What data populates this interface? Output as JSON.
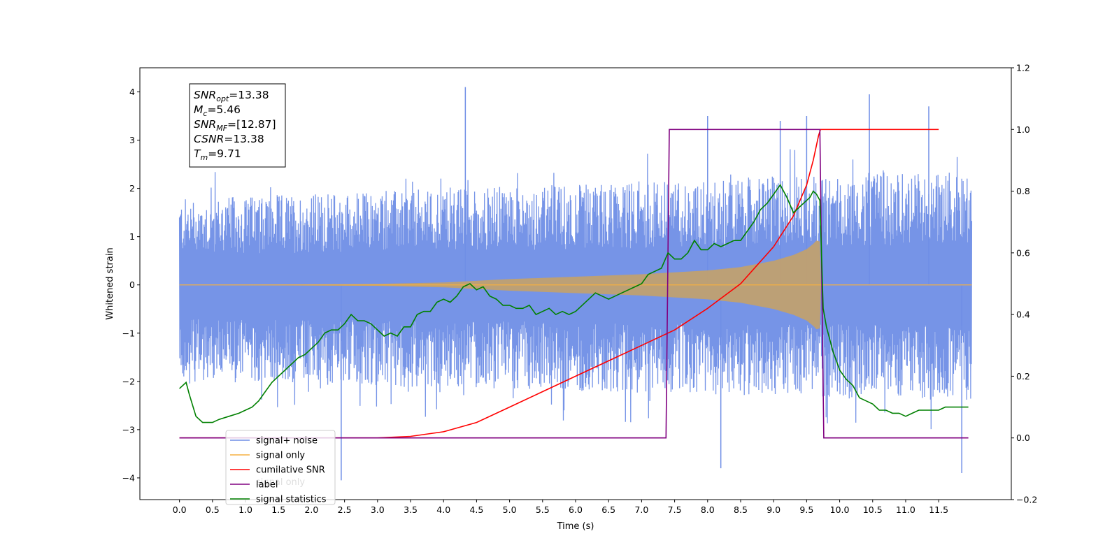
{
  "chart_data": {
    "type": "line",
    "xlabel": "Time (s)",
    "ylabel_left": "Whitened strain",
    "ylabel_right": "",
    "xlim": [
      -0.6,
      12.6
    ],
    "ylim_left": [
      -4.45,
      4.5
    ],
    "ylim_right": [
      -0.2,
      1.2
    ],
    "grid": false,
    "x_ticks": [
      0.0,
      0.5,
      1.0,
      1.5,
      2.0,
      2.5,
      3.0,
      3.5,
      4.0,
      4.5,
      5.0,
      5.5,
      6.0,
      6.5,
      7.0,
      7.5,
      8.0,
      8.5,
      9.0,
      9.5,
      10.0,
      10.5,
      11.0,
      11.5
    ],
    "x_tick_labels": [
      "0.0",
      "0.5",
      "1.0",
      "1.5",
      "2.0",
      "2.5",
      "3.0",
      "3.5",
      "4.0",
      "4.5",
      "5.0",
      "5.5",
      "6.0",
      "6.5",
      "7.0",
      "7.5",
      "8.0",
      "8.5",
      "9.0",
      "9.5",
      "10.0",
      "10.5",
      "11.0",
      "11.5"
    ],
    "y_left_ticks": [
      4,
      3,
      2,
      1,
      0,
      -1,
      -2,
      -3,
      -4
    ],
    "y_left_tick_labels": [
      "4",
      "3",
      "2",
      "1",
      "0",
      "−1",
      "−2",
      "−3",
      "−4"
    ],
    "y_right_ticks": [
      1.2,
      1.0,
      0.8,
      0.6,
      0.4,
      0.2,
      0.0,
      -0.2
    ],
    "y_right_tick_labels": [
      "1.2",
      "1.0",
      "0.8",
      "0.6",
      "0.4",
      "0.2",
      "0.0",
      "−0.2"
    ],
    "legend_position": "lower-left",
    "series": [
      {
        "name": "signal+ noise",
        "axis": "left",
        "color": "#6f8ee6",
        "note_envelope": "noisy trace",
        "x": [
          0.0,
          12.0
        ],
        "upper_envelope_approx": [
          1.8,
          2.4
        ],
        "lower_envelope_approx": [
          -2.0,
          -2.4
        ],
        "peaks": [
          [
            4.33,
            4.1
          ],
          [
            10.45,
            3.95
          ],
          [
            11.35,
            3.7
          ],
          [
            8.0,
            3.5
          ],
          [
            9.5,
            3.5
          ],
          [
            9.1,
            3.4
          ],
          [
            2.45,
            -4.05
          ],
          [
            11.85,
            -3.9
          ],
          [
            8.2,
            -3.8
          ]
        ]
      },
      {
        "name": "signal only",
        "axis": "left",
        "color": "#f5b041",
        "x": [
          0.0,
          3.0,
          4.0,
          5.0,
          6.0,
          7.0,
          8.0,
          8.5,
          9.0,
          9.3,
          9.5,
          9.6,
          9.65,
          9.7,
          9.72
        ],
        "amplitude": [
          0.0,
          0.02,
          0.05,
          0.12,
          0.17,
          0.22,
          0.3,
          0.37,
          0.5,
          0.62,
          0.74,
          0.85,
          0.92,
          0.9,
          0.0
        ]
      },
      {
        "name": "cumilative SNR",
        "axis": "right",
        "color": "#ff0000",
        "x": [
          0.0,
          3.0,
          3.5,
          4.0,
          4.5,
          5.0,
          5.5,
          6.0,
          6.5,
          7.0,
          7.5,
          8.0,
          8.5,
          9.0,
          9.3,
          9.5,
          9.6,
          9.68,
          9.71,
          9.75,
          11.5
        ],
        "values": [
          0.0,
          0.0,
          0.005,
          0.02,
          0.05,
          0.1,
          0.15,
          0.2,
          0.25,
          0.3,
          0.35,
          0.42,
          0.5,
          0.62,
          0.72,
          0.82,
          0.9,
          0.98,
          1.0,
          1.0,
          1.0
        ]
      },
      {
        "name": "label",
        "axis": "right",
        "color": "#800080",
        "x": [
          0.0,
          7.37,
          7.42,
          9.7,
          9.76,
          11.95
        ],
        "values": [
          0.0,
          0.0,
          1.0,
          1.0,
          0.0,
          0.0
        ]
      },
      {
        "name": "signal statistics",
        "axis": "right",
        "color": "#008000",
        "x": [
          0.0,
          0.1,
          0.15,
          0.25,
          0.35,
          0.5,
          0.6,
          0.75,
          0.9,
          1.0,
          1.1,
          1.2,
          1.3,
          1.4,
          1.5,
          1.6,
          1.7,
          1.8,
          1.9,
          2.0,
          2.1,
          2.2,
          2.3,
          2.4,
          2.5,
          2.6,
          2.7,
          2.8,
          2.9,
          3.0,
          3.1,
          3.2,
          3.3,
          3.4,
          3.5,
          3.6,
          3.7,
          3.8,
          3.9,
          4.0,
          4.1,
          4.2,
          4.3,
          4.4,
          4.5,
          4.6,
          4.7,
          4.8,
          4.9,
          5.0,
          5.1,
          5.2,
          5.3,
          5.4,
          5.5,
          5.6,
          5.7,
          5.8,
          5.9,
          6.0,
          6.1,
          6.2,
          6.3,
          6.4,
          6.5,
          6.6,
          6.7,
          6.8,
          6.9,
          7.0,
          7.1,
          7.2,
          7.3,
          7.4,
          7.5,
          7.6,
          7.7,
          7.8,
          7.9,
          8.0,
          8.1,
          8.2,
          8.3,
          8.4,
          8.5,
          8.6,
          8.7,
          8.8,
          8.9,
          9.0,
          9.1,
          9.2,
          9.3,
          9.4,
          9.5,
          9.55,
          9.6,
          9.65,
          9.7,
          9.75,
          9.8,
          9.9,
          10.0,
          10.1,
          10.2,
          10.3,
          10.4,
          10.5,
          10.6,
          10.7,
          10.8,
          10.9,
          11.0,
          11.1,
          11.2,
          11.3,
          11.4,
          11.5,
          11.6,
          11.7,
          11.8,
          11.9,
          11.95
        ],
        "values": [
          0.16,
          0.18,
          0.14,
          0.07,
          0.05,
          0.05,
          0.06,
          0.07,
          0.08,
          0.09,
          0.1,
          0.12,
          0.15,
          0.18,
          0.2,
          0.22,
          0.24,
          0.26,
          0.27,
          0.29,
          0.31,
          0.34,
          0.35,
          0.35,
          0.37,
          0.4,
          0.38,
          0.38,
          0.37,
          0.35,
          0.33,
          0.34,
          0.33,
          0.36,
          0.36,
          0.4,
          0.41,
          0.41,
          0.44,
          0.45,
          0.44,
          0.46,
          0.49,
          0.5,
          0.48,
          0.49,
          0.46,
          0.45,
          0.43,
          0.43,
          0.42,
          0.42,
          0.43,
          0.4,
          0.41,
          0.42,
          0.4,
          0.41,
          0.4,
          0.41,
          0.43,
          0.45,
          0.47,
          0.46,
          0.45,
          0.46,
          0.47,
          0.48,
          0.49,
          0.5,
          0.53,
          0.54,
          0.55,
          0.6,
          0.58,
          0.58,
          0.6,
          0.64,
          0.61,
          0.61,
          0.63,
          0.62,
          0.63,
          0.64,
          0.64,
          0.67,
          0.7,
          0.74,
          0.76,
          0.79,
          0.82,
          0.78,
          0.73,
          0.75,
          0.77,
          0.78,
          0.8,
          0.79,
          0.77,
          0.42,
          0.36,
          0.28,
          0.22,
          0.19,
          0.17,
          0.13,
          0.12,
          0.11,
          0.09,
          0.09,
          0.08,
          0.08,
          0.07,
          0.08,
          0.09,
          0.09,
          0.09,
          0.09,
          0.1,
          0.1,
          0.1,
          0.1,
          0.1
        ]
      }
    ]
  },
  "info_box": {
    "lines": [
      {
        "sym": "SNR",
        "sub": "opt",
        "value": "=13.38"
      },
      {
        "sym": "M",
        "sub": "c",
        "value": "=5.46"
      },
      {
        "sym": "SNR",
        "sub": "MF",
        "value": "=[12.87]"
      },
      {
        "sym": "CSNR",
        "sub": "",
        "value": "=13.38"
      },
      {
        "sym": "T",
        "sub": "m",
        "value": "=9.71"
      }
    ]
  },
  "legend": {
    "items": [
      {
        "label": "signal+ noise",
        "color": "#6f8ee6"
      },
      {
        "label": "signal only",
        "color": "#f5b041"
      },
      {
        "label": "cumilative SNR",
        "color": "#ff0000"
      },
      {
        "label": "label",
        "color": "#800080"
      },
      {
        "label": "signal statistics",
        "color": "#008000"
      }
    ],
    "ghost_text": "signal only"
  }
}
